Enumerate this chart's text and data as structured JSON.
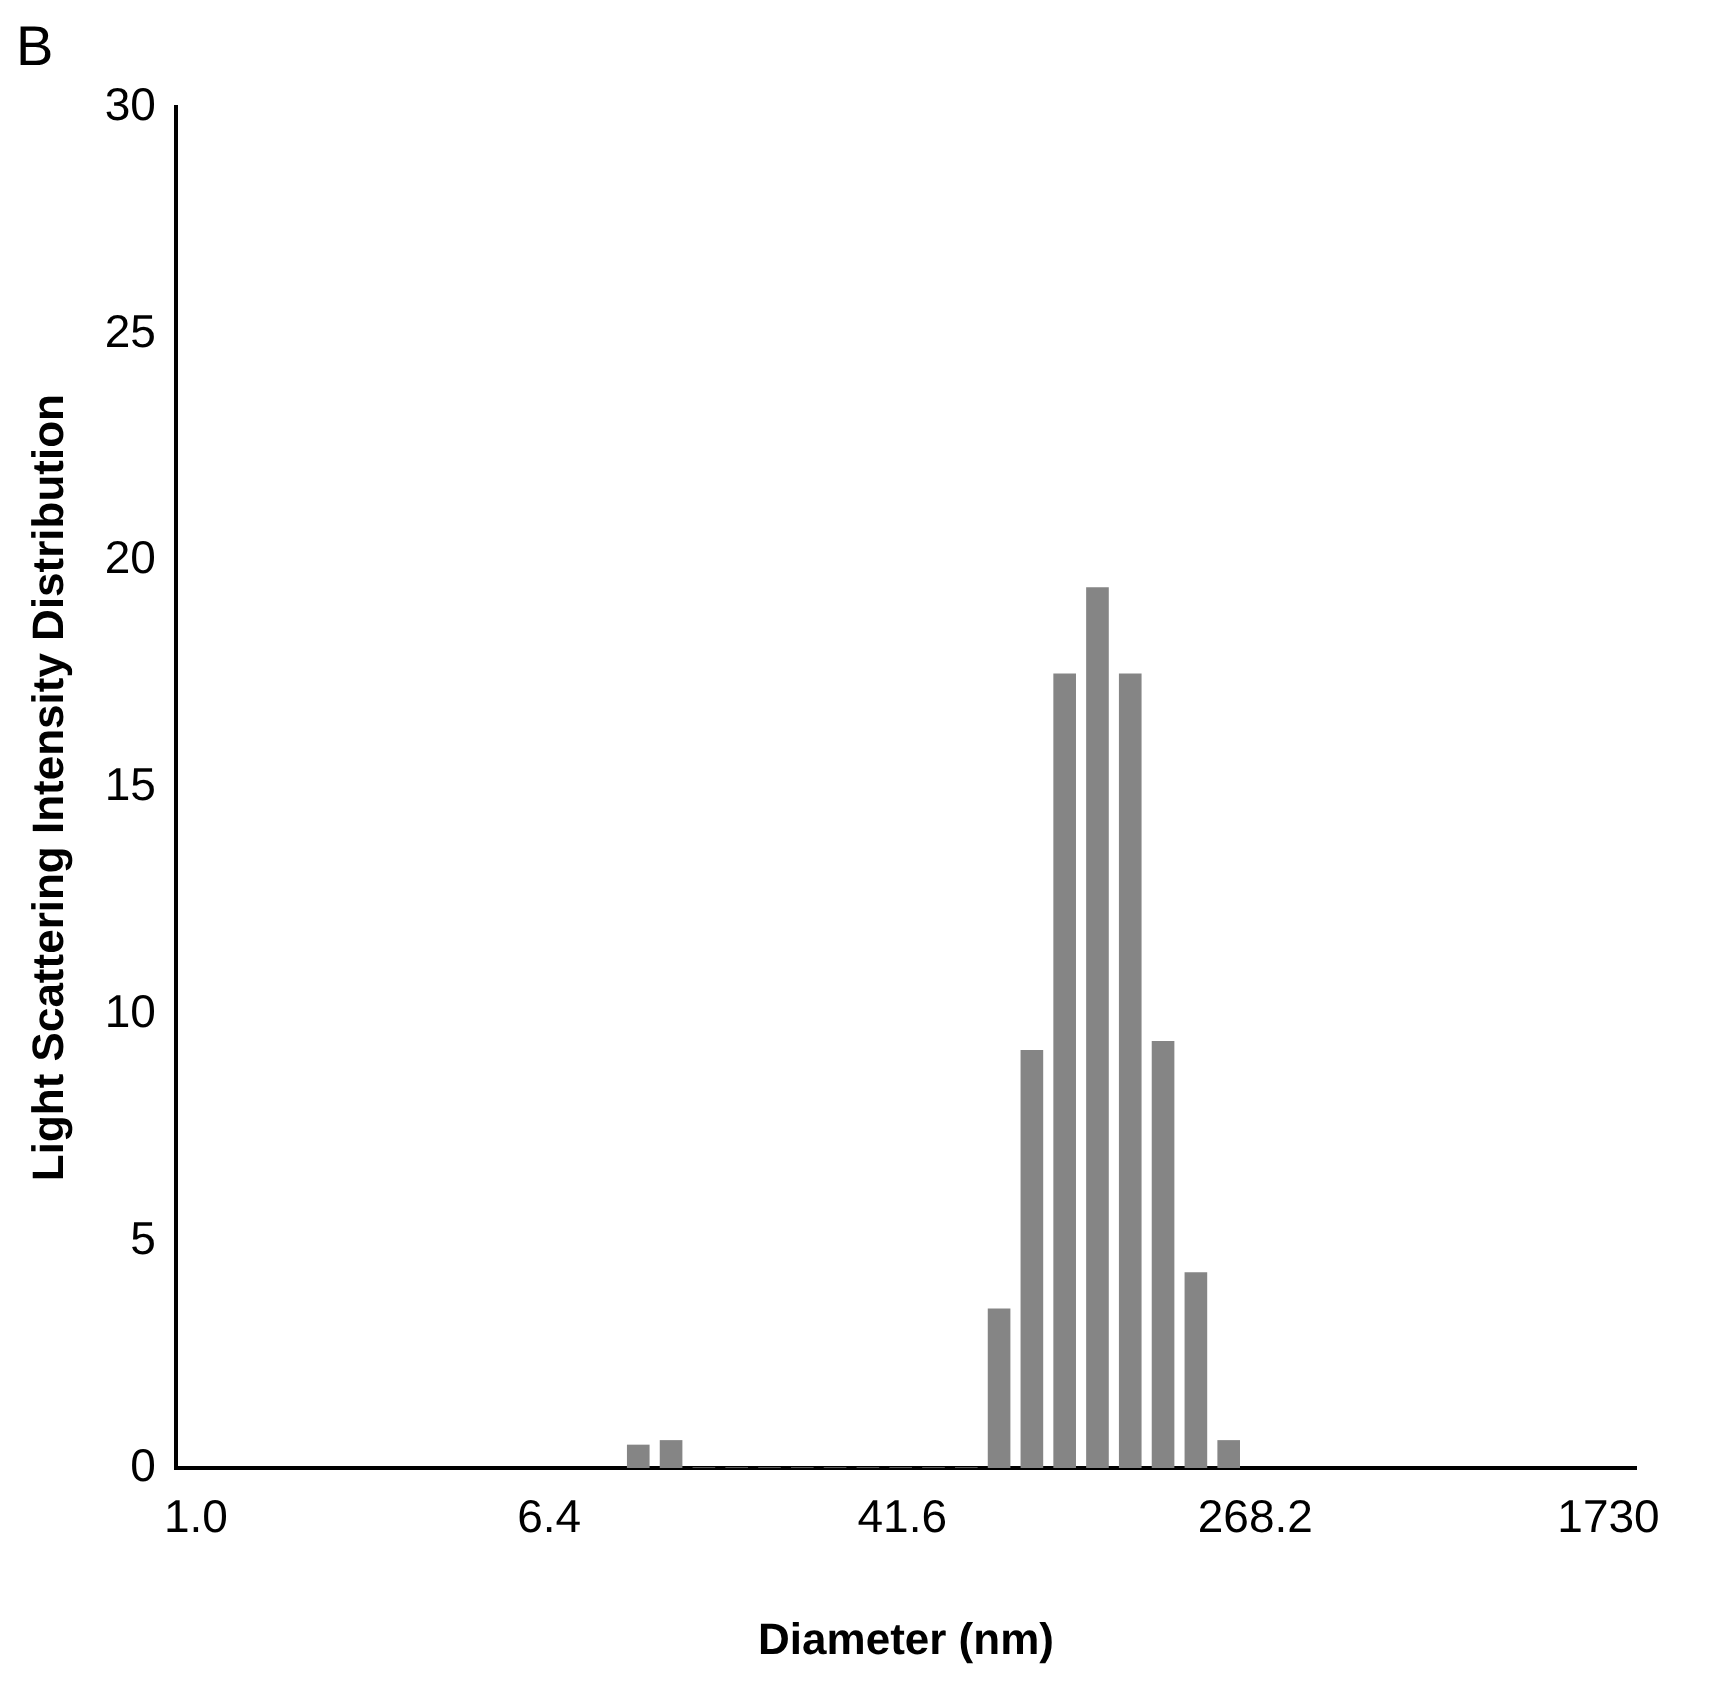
{
  "chart_data": {
    "type": "histogram",
    "title": "B",
    "xlabel": "Diameter (nm)",
    "ylabel": "Light Scattering Intensity Distribution",
    "bins": [
      9.47,
      11.26,
      13.39,
      15.92,
      18.93,
      22.51,
      26.76,
      31.82,
      37.84,
      44.99,
      53.49,
      63.6,
      75.62,
      89.91,
      106.9,
      127.1,
      151.1,
      179.7,
      213.7,
      254.1
    ],
    "values": [
      0.5,
      0.6,
      0,
      0,
      0,
      0,
      0,
      0,
      0,
      0,
      0,
      3.5,
      9.2,
      17.5,
      19.4,
      17.5,
      9.4,
      4.3,
      0.6
    ],
    "color": "#858585",
    "log": "x",
    "xlim": [
      0.9,
      2000
    ],
    "xticks": [
      {
        "value": 1,
        "label": "1.0"
      },
      {
        "value": 6.45,
        "label": "6.4"
      },
      41.6,
      268.2,
      1730
    ],
    "ylim": [
      0,
      30
    ],
    "yticks": [
      0,
      5,
      10,
      15,
      20,
      25,
      30
    ],
    "grid": false,
    "legend": false
  }
}
